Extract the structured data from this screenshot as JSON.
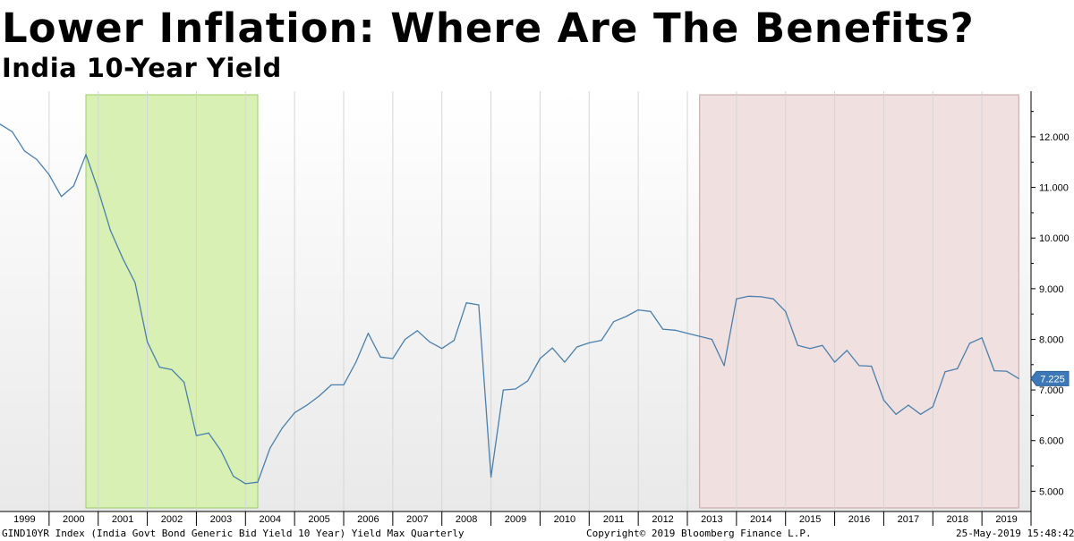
{
  "chart_data": {
    "type": "line",
    "title": "Lower Inflation: Where Are The Benefits?",
    "subtitle": "India 10-Year Yield",
    "xlabel": "",
    "ylabel": "",
    "xlim": [
      1998.5,
      2019.5
    ],
    "ylim": [
      4.6,
      12.9
    ],
    "grid": true,
    "y_ticks": [
      "5.000",
      "6.000",
      "7.000",
      "8.000",
      "9.000",
      "10.000",
      "11.000",
      "12.000"
    ],
    "x_ticks": [
      "1999",
      "2000",
      "2001",
      "2002",
      "2003",
      "2004",
      "2005",
      "2006",
      "2007",
      "2008",
      "2009",
      "2010",
      "2011",
      "2012",
      "2013",
      "2014",
      "2015",
      "2016",
      "2017",
      "2018",
      "2019"
    ],
    "shaded_regions": [
      {
        "start": 2000.25,
        "end": 2003.75,
        "color": "#d8f0b4"
      },
      {
        "start": 2012.75,
        "end": 2019.25,
        "color": "#f0e0e0"
      }
    ],
    "last_value_label": "7.225",
    "series": [
      {
        "color": "#4a7fab",
        "x": [
          1998.5,
          1998.75,
          1999.0,
          1999.25,
          1999.5,
          1999.75,
          2000.0,
          2000.25,
          2000.5,
          2000.75,
          2001.0,
          2001.25,
          2001.5,
          2001.75,
          2002.0,
          2002.25,
          2002.5,
          2002.75,
          2003.0,
          2003.25,
          2003.5,
          2003.75,
          2004.0,
          2004.25,
          2004.5,
          2004.75,
          2005.0,
          2005.25,
          2005.5,
          2005.75,
          2006.0,
          2006.25,
          2006.5,
          2006.75,
          2007.0,
          2007.25,
          2007.5,
          2007.75,
          2008.0,
          2008.25,
          2008.5,
          2008.75,
          2009.0,
          2009.25,
          2009.5,
          2009.75,
          2010.0,
          2010.25,
          2010.5,
          2010.75,
          2011.0,
          2011.25,
          2011.5,
          2011.75,
          2012.0,
          2012.25,
          2012.5,
          2012.75,
          2013.0,
          2013.25,
          2013.5,
          2013.75,
          2014.0,
          2014.25,
          2014.5,
          2014.75,
          2015.0,
          2015.25,
          2015.5,
          2015.75,
          2016.0,
          2016.25,
          2016.5,
          2016.75,
          2017.0,
          2017.25,
          2017.5,
          2017.75,
          2018.0,
          2018.25,
          2018.5,
          2018.75,
          2019.0,
          2019.25
        ],
        "values": [
          12.25,
          12.1,
          11.72,
          11.55,
          11.25,
          10.82,
          11.03,
          11.65,
          10.95,
          10.15,
          9.6,
          9.12,
          7.95,
          7.45,
          7.4,
          7.15,
          6.1,
          6.15,
          5.8,
          5.3,
          5.15,
          5.18,
          5.85,
          6.25,
          6.55,
          6.7,
          6.88,
          7.1,
          7.1,
          7.55,
          8.12,
          7.65,
          7.62,
          8.0,
          8.17,
          7.95,
          7.82,
          7.98,
          8.72,
          8.68,
          5.28,
          7.0,
          7.02,
          7.18,
          7.62,
          7.83,
          7.55,
          7.85,
          7.93,
          7.98,
          8.35,
          8.45,
          8.58,
          8.55,
          8.2,
          8.18,
          8.12,
          8.06,
          8.0,
          7.48,
          8.8,
          8.85,
          8.84,
          8.8,
          8.55,
          7.88,
          7.82,
          7.88,
          7.55,
          7.78,
          7.48,
          7.47,
          6.8,
          6.52,
          6.7,
          6.52,
          6.67,
          7.36,
          7.42,
          7.92,
          8.03,
          7.38,
          7.37,
          7.225
        ]
      }
    ]
  },
  "footer": {
    "left": "GIND10YR Index (India Govt Bond Generic Bid Yield 10 Year) Yield Max  Quarterly",
    "center": "Copyright© 2019 Bloomberg Finance L.P.",
    "right": "25-May-2019 15:48:42"
  }
}
